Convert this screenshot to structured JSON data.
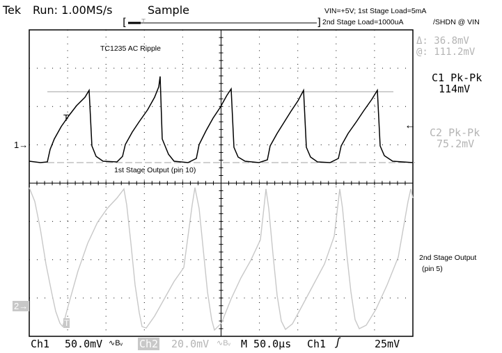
{
  "header": {
    "brand": "Tek",
    "run_status": "Run: 1.00MS/s",
    "acq_mode": "Sample",
    "record_bracket_left": "[",
    "record_bracket_right": "]",
    "trigger_marker": "T"
  },
  "annotations": {
    "conditions_line1": "VIN=+5V; 1st Stage Load=5mA",
    "conditions_line2": "2nd Stage Load=1000uA",
    "conditions_line3": "/SHDN @ VIN",
    "plot_title": "TC1235 AC Ripple",
    "ch1_label": "1st Stage Output (pin 10)",
    "ch2_label_line1": "2nd Stage Output",
    "ch2_label_line2": "(pin 5)"
  },
  "cursors": {
    "delta": "Δ: 36.8mV",
    "at": "@: 111.2mV"
  },
  "measurements": {
    "c1_label": "C1 Pk-Pk",
    "c1_value": "114mV",
    "c2_label": "C2 Pk-Pk",
    "c2_value": "75.2mV"
  },
  "markers": {
    "ch1": "1→",
    "ch2": "2→",
    "trigger_level": "←",
    "ch1_trigger_pos": "T",
    "ch2_trigger_pos": "T"
  },
  "status_bar": {
    "ch1_name": "Ch1",
    "ch1_scale": "50.0mV",
    "ch1_bw": "∿Bᵥ",
    "ch2_name": "Ch2",
    "ch2_scale": "20.0mV",
    "ch2_bw": "∿Bᵥ",
    "timebase": "M 50.0μs",
    "trig_source": "Ch1",
    "trig_slope": "ʃ",
    "trig_level": "25mV"
  },
  "colors": {
    "background": "#ffffff",
    "ch1_trace": "#000000",
    "ch2_trace": "#c8c8c8",
    "ch2_label_bg": "#c8c8c8",
    "grid": "#000000"
  }
}
